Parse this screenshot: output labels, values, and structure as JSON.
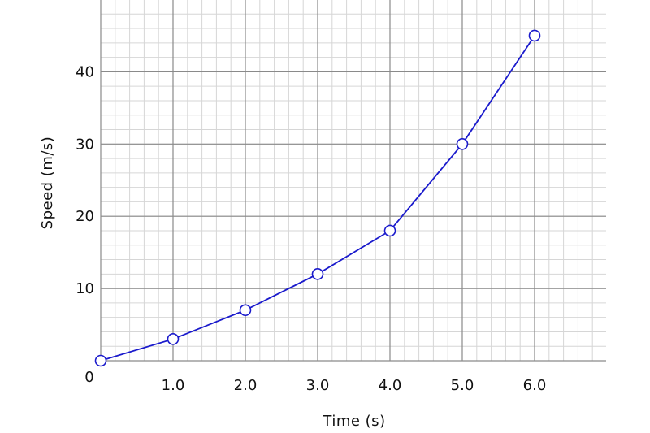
{
  "chart_data": {
    "type": "line",
    "title": "",
    "xlabel": "Time (s)",
    "ylabel": "Speed (m/s)",
    "origin_label": "0",
    "xlim": [
      0,
      7
    ],
    "ylim": [
      0,
      50
    ],
    "grid": true,
    "minor_grid": true,
    "x_ticks": [
      {
        "value": 1,
        "label": "1.0"
      },
      {
        "value": 2,
        "label": "2.0"
      },
      {
        "value": 3,
        "label": "3.0"
      },
      {
        "value": 4,
        "label": "4.0"
      },
      {
        "value": 5,
        "label": "5.0"
      },
      {
        "value": 6,
        "label": "6.0"
      }
    ],
    "y_ticks": [
      {
        "value": 10,
        "label": "10"
      },
      {
        "value": 20,
        "label": "20"
      },
      {
        "value": 30,
        "label": "30"
      },
      {
        "value": 40,
        "label": "40"
      }
    ],
    "series": [
      {
        "color": "#1a1acc",
        "marker": "open-circle",
        "x": [
          0,
          1,
          2,
          3,
          4,
          5,
          6
        ],
        "y": [
          0,
          3,
          7,
          12,
          18,
          30,
          45
        ]
      }
    ]
  }
}
